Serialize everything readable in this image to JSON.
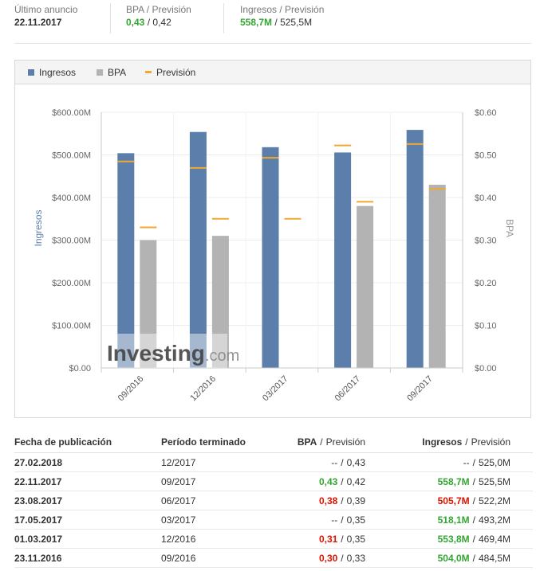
{
  "header": {
    "announce_label": "Último anuncio",
    "announce_value": "22.11.2017",
    "bpa_label": "BPA / Previsión",
    "bpa_actual": "0,43",
    "bpa_forecast": "0,42",
    "ingresos_label": "Ingresos / Previsión",
    "ingresos_actual": "558,7M",
    "ingresos_forecast": "525,5M",
    "slash": "/"
  },
  "legend": {
    "ingresos": "Ingresos",
    "bpa": "BPA",
    "prevision": "Previsión"
  },
  "colors": {
    "ingresos": "#5b7faa",
    "bpa": "#b3b3b3",
    "prevision": "#f0a830",
    "positive": "#33a532",
    "negative": "#d91400"
  },
  "chart_data": {
    "type": "bar",
    "categories": [
      "09/2016",
      "12/2016",
      "03/2017",
      "06/2017",
      "09/2017"
    ],
    "series": [
      {
        "name": "Ingresos",
        "axis": "left",
        "values": [
          504.0,
          553.8,
          518.1,
          505.7,
          558.7
        ]
      },
      {
        "name": "BPA",
        "axis": "right",
        "values": [
          0.3,
          0.31,
          null,
          0.38,
          0.43
        ]
      }
    ],
    "forecasts": [
      {
        "name": "Previsión",
        "of": "Ingresos",
        "values": [
          484.5,
          469.4,
          493.2,
          522.2,
          525.5
        ]
      },
      {
        "name": "Previsión",
        "of": "BPA",
        "values": [
          0.33,
          0.35,
          0.35,
          0.39,
          0.42
        ]
      }
    ],
    "ylabel": "Ingresos",
    "ylabel_right": "BPA",
    "ylim": [
      0,
      600
    ],
    "ylim_right": [
      0,
      0.6
    ],
    "yticks": [
      "$0.00",
      "$100.00M",
      "$200.00M",
      "$300.00M",
      "$400.00M",
      "$500.00M",
      "$600.00M"
    ],
    "yticks_right": [
      "$0.00",
      "$0.10",
      "$0.20",
      "$0.30",
      "$0.40",
      "$0.50",
      "$0.60"
    ],
    "grid": true,
    "legend_position": "top-left",
    "watermark": "Investing.com"
  },
  "table": {
    "headers": {
      "date": "Fecha de publicación",
      "period": "Período terminado",
      "bpa": "BPA",
      "bpa_forecast": "Previsión",
      "ingresos": "Ingresos",
      "ingresos_forecast": "Previsión"
    },
    "rows": [
      {
        "date": "27.02.2018",
        "period": "12/2017",
        "bpa": "--",
        "bpa_class": "",
        "bpa_forecast": "0,43",
        "ingresos": "--",
        "ingresos_class": "",
        "ingresos_forecast": "525,0M"
      },
      {
        "date": "22.11.2017",
        "period": "09/2017",
        "bpa": "0,43",
        "bpa_class": "pos",
        "bpa_forecast": "0,42",
        "ingresos": "558,7M",
        "ingresos_class": "pos",
        "ingresos_forecast": "525,5M"
      },
      {
        "date": "23.08.2017",
        "period": "06/2017",
        "bpa": "0,38",
        "bpa_class": "neg",
        "bpa_forecast": "0,39",
        "ingresos": "505,7M",
        "ingresos_class": "neg",
        "ingresos_forecast": "522,2M"
      },
      {
        "date": "17.05.2017",
        "period": "03/2017",
        "bpa": "--",
        "bpa_class": "",
        "bpa_forecast": "0,35",
        "ingresos": "518,1M",
        "ingresos_class": "pos",
        "ingresos_forecast": "493,2M"
      },
      {
        "date": "01.03.2017",
        "period": "12/2016",
        "bpa": "0,31",
        "bpa_class": "neg",
        "bpa_forecast": "0,35",
        "ingresos": "553,8M",
        "ingresos_class": "pos",
        "ingresos_forecast": "469,4M"
      },
      {
        "date": "23.11.2016",
        "period": "09/2016",
        "bpa": "0,30",
        "bpa_class": "neg",
        "bpa_forecast": "0,33",
        "ingresos": "504,0M",
        "ingresos_class": "pos",
        "ingresos_forecast": "484,5M"
      }
    ]
  }
}
